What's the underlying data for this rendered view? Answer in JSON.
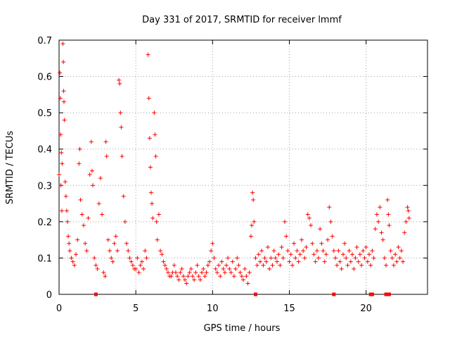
{
  "chart_data": {
    "type": "scatter",
    "title": "Day 331 of 2017, SRMTID for receiver lmmf",
    "xlabel": "GPS time / hours",
    "ylabel": "SRMTID / TECUs",
    "xlim": [
      0,
      24
    ],
    "ylim": [
      0,
      0.7
    ],
    "grid": true,
    "x_ticks": [
      0,
      5,
      10,
      15,
      20
    ],
    "y_ticks": [
      0,
      0.1,
      0.2,
      0.3,
      0.4,
      0.5,
      0.6,
      0.7
    ],
    "x_tick_labels": [
      "0",
      "5",
      "10",
      "15",
      "20"
    ],
    "y_tick_labels": [
      "0",
      "0.1",
      "0.2",
      "0.3",
      "0.4",
      "0.5",
      "0.6",
      "0.7"
    ],
    "marker": "+",
    "color": "#ff0000",
    "baseline_markers_x": [
      2.4,
      12.8,
      17.9,
      20.3,
      20.4,
      21.3,
      21.5
    ],
    "points": [
      [
        0.0,
        0.33
      ],
      [
        0.05,
        0.61
      ],
      [
        0.08,
        0.54
      ],
      [
        0.1,
        0.44
      ],
      [
        0.12,
        0.3
      ],
      [
        0.15,
        0.39
      ],
      [
        0.18,
        0.23
      ],
      [
        0.2,
        0.36
      ],
      [
        0.25,
        0.69
      ],
      [
        0.28,
        0.64
      ],
      [
        0.3,
        0.56
      ],
      [
        0.32,
        0.53
      ],
      [
        0.35,
        0.48
      ],
      [
        0.4,
        0.31
      ],
      [
        0.45,
        0.27
      ],
      [
        0.5,
        0.23
      ],
      [
        0.55,
        0.2
      ],
      [
        0.6,
        0.16
      ],
      [
        0.65,
        0.14
      ],
      [
        0.7,
        0.12
      ],
      [
        0.8,
        0.1
      ],
      [
        0.9,
        0.09
      ],
      [
        1.0,
        0.08
      ],
      [
        1.1,
        0.11
      ],
      [
        1.2,
        0.15
      ],
      [
        1.3,
        0.36
      ],
      [
        1.35,
        0.4
      ],
      [
        1.4,
        0.26
      ],
      [
        1.5,
        0.22
      ],
      [
        1.6,
        0.19
      ],
      [
        1.7,
        0.14
      ],
      [
        1.8,
        0.12
      ],
      [
        1.9,
        0.21
      ],
      [
        2.0,
        0.33
      ],
      [
        2.1,
        0.42
      ],
      [
        2.15,
        0.34
      ],
      [
        2.2,
        0.3
      ],
      [
        2.3,
        0.1
      ],
      [
        2.4,
        0.08
      ],
      [
        2.5,
        0.07
      ],
      [
        2.6,
        0.25
      ],
      [
        2.7,
        0.32
      ],
      [
        2.8,
        0.22
      ],
      [
        2.9,
        0.06
      ],
      [
        3.0,
        0.05
      ],
      [
        3.05,
        0.42
      ],
      [
        3.1,
        0.38
      ],
      [
        3.2,
        0.15
      ],
      [
        3.3,
        0.12
      ],
      [
        3.4,
        0.1
      ],
      [
        3.5,
        0.09
      ],
      [
        3.6,
        0.14
      ],
      [
        3.7,
        0.16
      ],
      [
        3.8,
        0.12
      ],
      [
        3.9,
        0.59
      ],
      [
        3.95,
        0.58
      ],
      [
        4.0,
        0.5
      ],
      [
        4.05,
        0.46
      ],
      [
        4.1,
        0.38
      ],
      [
        4.2,
        0.27
      ],
      [
        4.3,
        0.2
      ],
      [
        4.4,
        0.14
      ],
      [
        4.5,
        0.12
      ],
      [
        4.6,
        0.1
      ],
      [
        4.7,
        0.09
      ],
      [
        4.8,
        0.08
      ],
      [
        4.9,
        0.07
      ],
      [
        5.0,
        0.07
      ],
      [
        5.1,
        0.1
      ],
      [
        5.2,
        0.06
      ],
      [
        5.3,
        0.08
      ],
      [
        5.4,
        0.09
      ],
      [
        5.5,
        0.07
      ],
      [
        5.6,
        0.12
      ],
      [
        5.7,
        0.1
      ],
      [
        5.8,
        0.66
      ],
      [
        5.85,
        0.54
      ],
      [
        5.9,
        0.43
      ],
      [
        5.95,
        0.35
      ],
      [
        6.0,
        0.28
      ],
      [
        6.05,
        0.25
      ],
      [
        6.1,
        0.21
      ],
      [
        6.2,
        0.5
      ],
      [
        6.25,
        0.44
      ],
      [
        6.3,
        0.38
      ],
      [
        6.35,
        0.2
      ],
      [
        6.4,
        0.15
      ],
      [
        6.5,
        0.22
      ],
      [
        6.6,
        0.12
      ],
      [
        6.7,
        0.11
      ],
      [
        6.8,
        0.09
      ],
      [
        6.9,
        0.08
      ],
      [
        7.0,
        0.07
      ],
      [
        7.1,
        0.06
      ],
      [
        7.2,
        0.05
      ],
      [
        7.3,
        0.05
      ],
      [
        7.4,
        0.06
      ],
      [
        7.5,
        0.08
      ],
      [
        7.6,
        0.06
      ],
      [
        7.7,
        0.05
      ],
      [
        7.8,
        0.04
      ],
      [
        7.9,
        0.06
      ],
      [
        8.0,
        0.07
      ],
      [
        8.1,
        0.05
      ],
      [
        8.2,
        0.04
      ],
      [
        8.3,
        0.03
      ],
      [
        8.4,
        0.05
      ],
      [
        8.5,
        0.06
      ],
      [
        8.6,
        0.07
      ],
      [
        8.7,
        0.05
      ],
      [
        8.8,
        0.04
      ],
      [
        8.9,
        0.06
      ],
      [
        9.0,
        0.08
      ],
      [
        9.1,
        0.05
      ],
      [
        9.2,
        0.04
      ],
      [
        9.3,
        0.06
      ],
      [
        9.4,
        0.07
      ],
      [
        9.5,
        0.05
      ],
      [
        9.6,
        0.06
      ],
      [
        9.7,
        0.08
      ],
      [
        9.8,
        0.09
      ],
      [
        9.9,
        0.12
      ],
      [
        10.0,
        0.14
      ],
      [
        10.1,
        0.1
      ],
      [
        10.2,
        0.07
      ],
      [
        10.3,
        0.06
      ],
      [
        10.4,
        0.08
      ],
      [
        10.5,
        0.05
      ],
      [
        10.6,
        0.09
      ],
      [
        10.7,
        0.07
      ],
      [
        10.8,
        0.06
      ],
      [
        10.9,
        0.08
      ],
      [
        11.0,
        0.1
      ],
      [
        11.1,
        0.07
      ],
      [
        11.2,
        0.06
      ],
      [
        11.3,
        0.09
      ],
      [
        11.4,
        0.05
      ],
      [
        11.5,
        0.07
      ],
      [
        11.6,
        0.1
      ],
      [
        11.7,
        0.08
      ],
      [
        11.8,
        0.06
      ],
      [
        11.9,
        0.05
      ],
      [
        12.0,
        0.04
      ],
      [
        12.1,
        0.07
      ],
      [
        12.2,
        0.05
      ],
      [
        12.3,
        0.03
      ],
      [
        12.4,
        0.06
      ],
      [
        12.5,
        0.16
      ],
      [
        12.55,
        0.19
      ],
      [
        12.6,
        0.28
      ],
      [
        12.65,
        0.26
      ],
      [
        12.7,
        0.2
      ],
      [
        12.8,
        0.1
      ],
      [
        12.9,
        0.08
      ],
      [
        13.0,
        0.11
      ],
      [
        13.1,
        0.09
      ],
      [
        13.2,
        0.12
      ],
      [
        13.3,
        0.08
      ],
      [
        13.4,
        0.1
      ],
      [
        13.5,
        0.09
      ],
      [
        13.6,
        0.13
      ],
      [
        13.7,
        0.07
      ],
      [
        13.8,
        0.1
      ],
      [
        13.9,
        0.08
      ],
      [
        14.0,
        0.12
      ],
      [
        14.1,
        0.1
      ],
      [
        14.2,
        0.09
      ],
      [
        14.3,
        0.11
      ],
      [
        14.4,
        0.08
      ],
      [
        14.5,
        0.13
      ],
      [
        14.6,
        0.1
      ],
      [
        14.7,
        0.2
      ],
      [
        14.8,
        0.16
      ],
      [
        14.9,
        0.12
      ],
      [
        15.0,
        0.09
      ],
      [
        15.1,
        0.11
      ],
      [
        15.2,
        0.08
      ],
      [
        15.3,
        0.14
      ],
      [
        15.4,
        0.1
      ],
      [
        15.5,
        0.12
      ],
      [
        15.6,
        0.09
      ],
      [
        15.7,
        0.11
      ],
      [
        15.8,
        0.15
      ],
      [
        15.9,
        0.12
      ],
      [
        16.0,
        0.1
      ],
      [
        16.1,
        0.13
      ],
      [
        16.2,
        0.22
      ],
      [
        16.3,
        0.21
      ],
      [
        16.4,
        0.19
      ],
      [
        16.5,
        0.14
      ],
      [
        16.6,
        0.11
      ],
      [
        16.7,
        0.09
      ],
      [
        16.8,
        0.12
      ],
      [
        16.9,
        0.1
      ],
      [
        17.0,
        0.18
      ],
      [
        17.1,
        0.14
      ],
      [
        17.2,
        0.12
      ],
      [
        17.3,
        0.09
      ],
      [
        17.4,
        0.11
      ],
      [
        17.5,
        0.15
      ],
      [
        17.6,
        0.24
      ],
      [
        17.7,
        0.2
      ],
      [
        17.8,
        0.16
      ],
      [
        17.9,
        0.12
      ],
      [
        18.0,
        0.1
      ],
      [
        18.1,
        0.08
      ],
      [
        18.2,
        0.12
      ],
      [
        18.3,
        0.09
      ],
      [
        18.4,
        0.07
      ],
      [
        18.5,
        0.11
      ],
      [
        18.6,
        0.14
      ],
      [
        18.7,
        0.1
      ],
      [
        18.8,
        0.08
      ],
      [
        18.9,
        0.12
      ],
      [
        19.0,
        0.09
      ],
      [
        19.1,
        0.11
      ],
      [
        19.2,
        0.07
      ],
      [
        19.3,
        0.1
      ],
      [
        19.4,
        0.13
      ],
      [
        19.5,
        0.09
      ],
      [
        19.6,
        0.11
      ],
      [
        19.7,
        0.08
      ],
      [
        19.8,
        0.12
      ],
      [
        19.9,
        0.1
      ],
      [
        20.0,
        0.13
      ],
      [
        20.1,
        0.09
      ],
      [
        20.2,
        0.11
      ],
      [
        20.3,
        0.08
      ],
      [
        20.4,
        0.12
      ],
      [
        20.5,
        0.1
      ],
      [
        20.6,
        0.18
      ],
      [
        20.7,
        0.22
      ],
      [
        20.8,
        0.2
      ],
      [
        20.9,
        0.24
      ],
      [
        21.0,
        0.17
      ],
      [
        21.1,
        0.15
      ],
      [
        21.2,
        0.1
      ],
      [
        21.3,
        0.08
      ],
      [
        21.4,
        0.26
      ],
      [
        21.45,
        0.22
      ],
      [
        21.5,
        0.19
      ],
      [
        21.6,
        0.12
      ],
      [
        21.7,
        0.1
      ],
      [
        21.8,
        0.08
      ],
      [
        21.9,
        0.11
      ],
      [
        22.0,
        0.09
      ],
      [
        22.1,
        0.13
      ],
      [
        22.2,
        0.1
      ],
      [
        22.3,
        0.12
      ],
      [
        22.4,
        0.09
      ],
      [
        22.5,
        0.17
      ],
      [
        22.6,
        0.2
      ],
      [
        22.7,
        0.24
      ],
      [
        22.75,
        0.23
      ],
      [
        22.8,
        0.21
      ]
    ]
  }
}
